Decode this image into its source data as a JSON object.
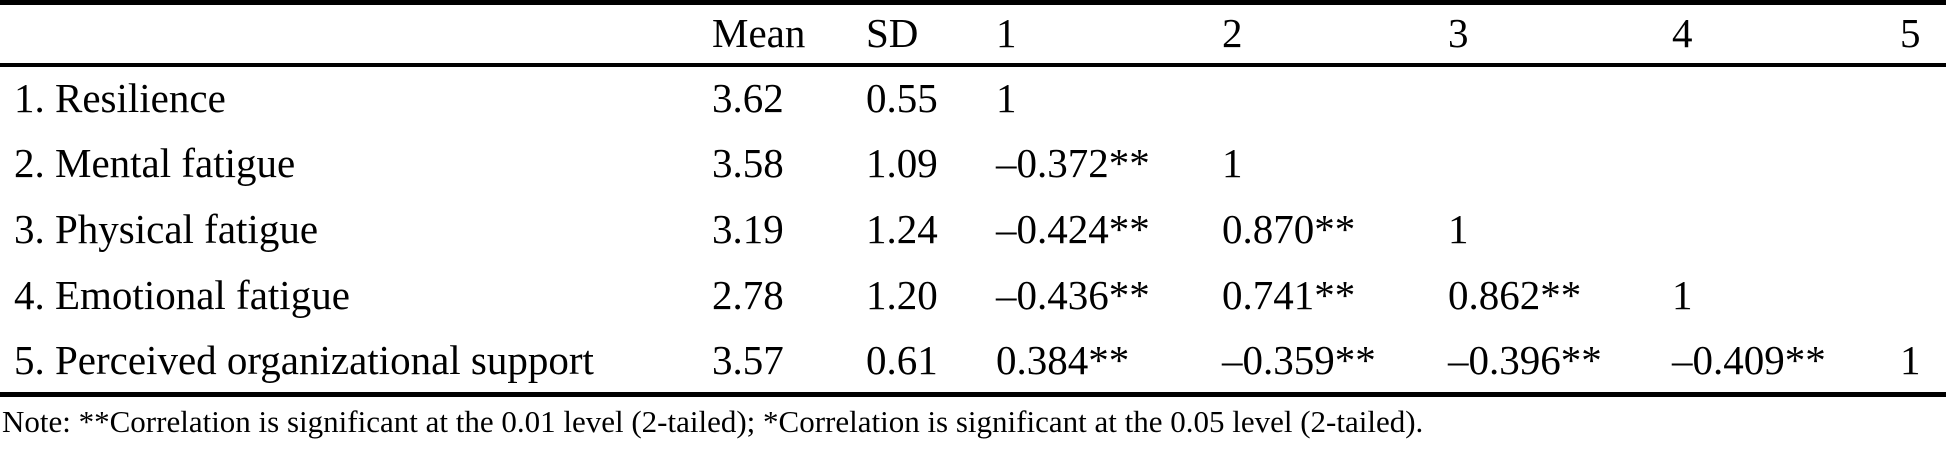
{
  "table": {
    "columns": [
      "",
      "Mean",
      "SD",
      "1",
      "2",
      "3",
      "4",
      "5"
    ],
    "rows": [
      [
        "1. Resilience",
        "3.62",
        "0.55",
        "1",
        "",
        "",
        "",
        ""
      ],
      [
        "2. Mental fatigue",
        "3.58",
        "1.09",
        "–0.372**",
        "1",
        "",
        "",
        ""
      ],
      [
        "3. Physical fatigue",
        "3.19",
        "1.24",
        "–0.424**",
        "0.870**",
        "1",
        "",
        ""
      ],
      [
        "4. Emotional fatigue",
        "2.78",
        "1.20",
        "–0.436**",
        "0.741**",
        "0.862**",
        "1",
        ""
      ],
      [
        "5. Perceived organizational support",
        "3.57",
        "0.61",
        "0.384**",
        "–0.359**",
        "–0.396**",
        "–0.409**",
        "1"
      ]
    ],
    "note": "Note: **Correlation is significant at the 0.01 level (2-tailed); *Correlation is significant at the 0.05 level (2-tailed)."
  },
  "colors": {
    "background": "#ffffff",
    "text": "#000000",
    "rule": "#000000"
  }
}
